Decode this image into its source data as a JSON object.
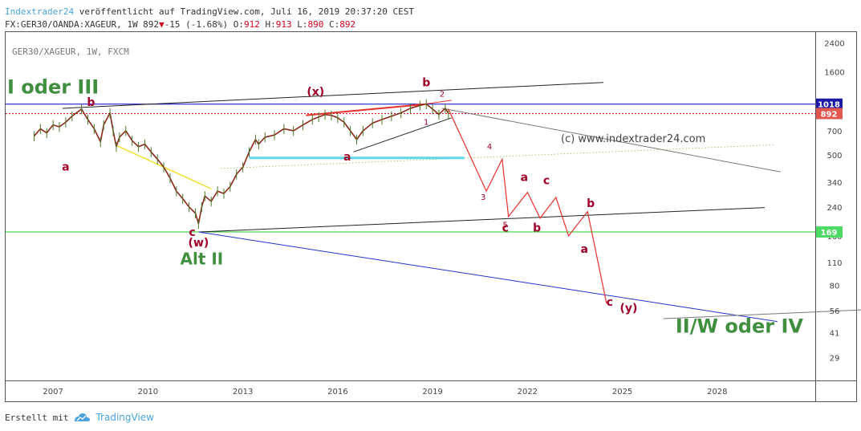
{
  "header": {
    "brand": "Indextrader24",
    "published": "veröffentlicht auf TradingView.com, Juli 16, 2019 20:37:20 CEST",
    "symbol_line": "FX:GER30/OANDA:XAGEUR, 1W 892",
    "change": "-15 (-1.68%)",
    "o_label": "O:",
    "o_value": "912",
    "h_label": "H:",
    "h_value": "913",
    "l_label": "L:",
    "l_value": "890",
    "c_label": "C:",
    "c_value": "892"
  },
  "footer": {
    "created_with": "Erstellt mit",
    "tradingview": "TradingView"
  },
  "colors": {
    "price_red": "#d0021b",
    "brand_blue": "#4aa3df",
    "wave_green": "#3f8f3f",
    "wave_label": "#a00028"
  },
  "chart_data": {
    "type": "line",
    "title": "GER30/XAGEUR, 1W, FXCM",
    "watermark": "(c) www.indextrader24.com",
    "y_scale": "log",
    "y_ticks": [
      2400,
      1600,
      1018,
      892,
      700,
      500,
      340,
      240,
      169,
      160,
      110,
      80,
      56,
      41,
      29
    ],
    "y_tick_labels": [
      "2400",
      "1600",
      "",
      "",
      "700",
      "500",
      "340",
      "240",
      "",
      "160",
      "110",
      "80",
      "56",
      "41",
      "29"
    ],
    "x_ticks": [
      2007,
      2010,
      2013,
      2016,
      2019,
      2022,
      2025,
      2028
    ],
    "xlim": [
      2005.5,
      2031.1
    ],
    "ylim": [
      21,
      2800
    ],
    "grid": false,
    "price_labels": [
      {
        "value": 1018,
        "text": "1018",
        "color": "#1a1aa6"
      },
      {
        "value": 892,
        "text": "892",
        "color": "#e0584f"
      },
      {
        "value": 169,
        "text": "169",
        "color": "#4cd964"
      }
    ],
    "horizontal_lines": [
      {
        "value": 1018,
        "color": "#0000cc",
        "style": "solid"
      },
      {
        "value": 892,
        "color": "#d0021b",
        "style": "dotted"
      },
      {
        "value": 169,
        "color": "#22cc22",
        "style": "solid"
      }
    ],
    "series": [
      {
        "kind": "price",
        "x": [
          2006.4,
          2006.6,
          2006.8,
          2007.0,
          2007.2,
          2007.4,
          2007.6,
          2007.9,
          2008.1,
          2008.3,
          2008.5,
          2008.6,
          2008.8,
          2008.9,
          2009.0,
          2009.1,
          2009.3,
          2009.5,
          2009.7,
          2009.9,
          2010.1,
          2010.3,
          2010.5,
          2010.7,
          2010.9,
          2011.1,
          2011.3,
          2011.5,
          2011.6,
          2011.7,
          2011.8,
          2012.0,
          2012.2,
          2012.4,
          2012.6,
          2012.8,
          2013.0,
          2013.2,
          2013.4,
          2013.5,
          2013.7,
          2014.0,
          2014.3,
          2014.6,
          2014.9,
          2015.2,
          2015.4,
          2015.6,
          2015.8,
          2016.0,
          2016.2,
          2016.4,
          2016.6,
          2016.8,
          2017.1,
          2017.4,
          2017.7,
          2018.0,
          2018.3,
          2018.6,
          2018.8,
          2019.0,
          2019.2,
          2019.4,
          2019.5
        ],
        "y": [
          650,
          720,
          680,
          760,
          740,
          790,
          860,
          950,
          820,
          720,
          600,
          760,
          900,
          700,
          560,
          640,
          700,
          610,
          560,
          580,
          520,
          470,
          420,
          360,
          300,
          270,
          240,
          220,
          190,
          240,
          280,
          260,
          300,
          290,
          320,
          380,
          420,
          520,
          620,
          580,
          640,
          660,
          720,
          700,
          760,
          820,
          850,
          880,
          870,
          840,
          790,
          700,
          620,
          700,
          780,
          820,
          860,
          900,
          960,
          1000,
          1020,
          950,
          880,
          960,
          892
        ]
      }
    ],
    "wave_labels": [
      {
        "text": "I oder III",
        "x": 2007.0,
        "y": 1180,
        "color": "#3f8f3f",
        "size": "xl"
      },
      {
        "text": "b",
        "x": 2008.2,
        "y": 990,
        "color": "#a00028",
        "size": "m"
      },
      {
        "text": "a",
        "x": 2007.4,
        "y": 400,
        "color": "#a00028",
        "size": "m"
      },
      {
        "text": "c",
        "x": 2011.4,
        "y": 160,
        "color": "#a00028",
        "size": "m"
      },
      {
        "text": "(w)",
        "x": 2011.6,
        "y": 138,
        "color": "#a00028",
        "size": "m"
      },
      {
        "text": "Alt II",
        "x": 2011.7,
        "y": 107,
        "color": "#3f8f3f",
        "size": "l"
      },
      {
        "text": "(x)",
        "x": 2015.3,
        "y": 1150,
        "color": "#a00028",
        "size": "m"
      },
      {
        "text": "a",
        "x": 2016.3,
        "y": 460,
        "color": "#a00028",
        "size": "m"
      },
      {
        "text": "b",
        "x": 2018.8,
        "y": 1310,
        "color": "#a00028",
        "size": "m"
      },
      {
        "text": "2",
        "x": 2019.3,
        "y": 1130,
        "color": "#a00028",
        "size": "s"
      },
      {
        "text": "1",
        "x": 2018.8,
        "y": 760,
        "color": "#a00028",
        "size": "s"
      },
      {
        "text": "4",
        "x": 2020.8,
        "y": 540,
        "color": "#a00028",
        "size": "s"
      },
      {
        "text": "3",
        "x": 2020.6,
        "y": 265,
        "color": "#a00028",
        "size": "s"
      },
      {
        "text": "5",
        "x": 2021.3,
        "y": 180,
        "color": "#a00028",
        "size": "s"
      },
      {
        "text": "c",
        "x": 2021.3,
        "y": 170,
        "color": "#a00028",
        "size": "m"
      },
      {
        "text": "a",
        "x": 2021.9,
        "y": 345,
        "color": "#a00028",
        "size": "m"
      },
      {
        "text": "b",
        "x": 2022.3,
        "y": 170,
        "color": "#a00028",
        "size": "m"
      },
      {
        "text": "c",
        "x": 2022.6,
        "y": 330,
        "color": "#a00028",
        "size": "m"
      },
      {
        "text": "b",
        "x": 2024.0,
        "y": 240,
        "color": "#a00028",
        "size": "m"
      },
      {
        "text": "a",
        "x": 2023.8,
        "y": 126,
        "color": "#a00028",
        "size": "m"
      },
      {
        "text": "c",
        "x": 2024.6,
        "y": 60,
        "color": "#a00028",
        "size": "m"
      },
      {
        "text": "(y)",
        "x": 2025.2,
        "y": 55,
        "color": "#a00028",
        "size": "m"
      },
      {
        "text": "II/W oder IV",
        "x": 2028.7,
        "y": 41,
        "color": "#3f8f3f",
        "size": "xl"
      }
    ]
  }
}
